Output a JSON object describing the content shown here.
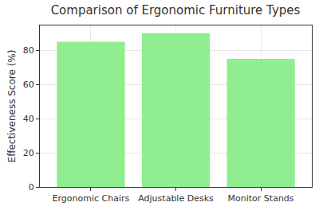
{
  "chart_data": {
    "type": "bar",
    "title": "Comparison of Ergonomic Furniture Types",
    "y_label": "Effectiveness Score (%)",
    "categories": [
      "Ergonomic Chairs",
      "Adjustable Desks",
      "Monitor Stands"
    ],
    "values": [
      85,
      90,
      75
    ],
    "color": "#90ee90",
    "ylim": [
      0,
      94.5
    ],
    "yticks": [
      0,
      20,
      40,
      60,
      80
    ],
    "grid": true
  }
}
